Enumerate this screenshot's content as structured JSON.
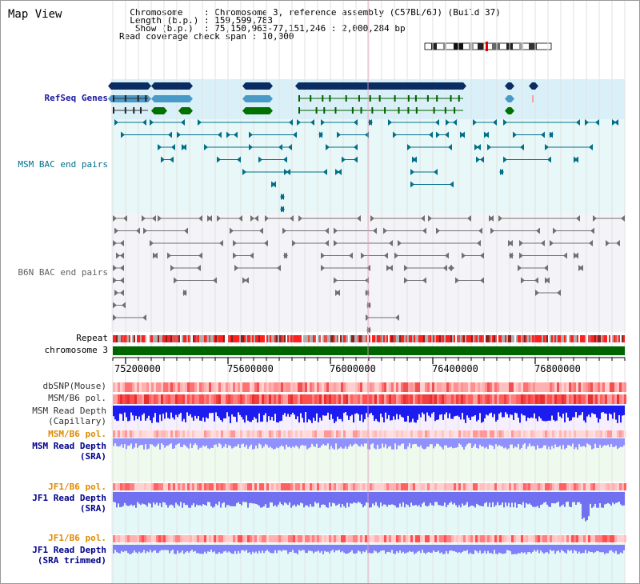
{
  "page": {
    "title": "Map View"
  },
  "info": {
    "lines": [
      "  Chromosome    : Chromosome 3, reference assembly (C57BL/6J) (Build 37)",
      "  Length (b.p.) : 159,599,783",
      "   Show (b.p.)  : 75,150,963-77,151,246 : 2,000,284 bp",
      "Read coverage check span : 10,000"
    ]
  },
  "tracks": {
    "refseq": "RefSeq Genes",
    "msm_bac": "MSM BAC end pairs",
    "b6n_bac": "B6N BAC end pairs",
    "repeat": "Repeat",
    "chromosome": "chromosome 3",
    "dbsnp": "dbSNP(Mouse)",
    "msm_pol": "MSM/B6 pol.",
    "msm_depth_cap_1": "MSM Read Depth",
    "msm_depth_cap_2": "(Capillary)",
    "msm_pol_2": "MSM/B6 pol.",
    "msm_depth_sra_1": "MSM Read Depth",
    "msm_depth_sra_2": "(SRA)",
    "jf1_pol": "JF1/B6 pol.",
    "jf1_depth_sra_1": "JF1 Read Depth",
    "jf1_depth_sra_2": "(SRA)",
    "jf1_pol_2": "JF1/B6 pol.",
    "jf1_depth_trim_1": "JF1 Read Depth",
    "jf1_depth_trim_2": "(SRA trimmed)"
  },
  "axis": {
    "ticks": [
      "75200000",
      "75600000",
      "76000000",
      "76400000",
      "76800000"
    ]
  },
  "colors": {
    "refseq_label": "#1a1aa0",
    "msm_label": "#006f8a",
    "b6n_label": "#606060",
    "orange_label": "#e08a00",
    "blue_label": "#00008b",
    "dark_label": "#303030",
    "gene_navy": "#0a2c60",
    "gene_teal": "#4a9ac8",
    "gene_green": "#007000"
  }
}
